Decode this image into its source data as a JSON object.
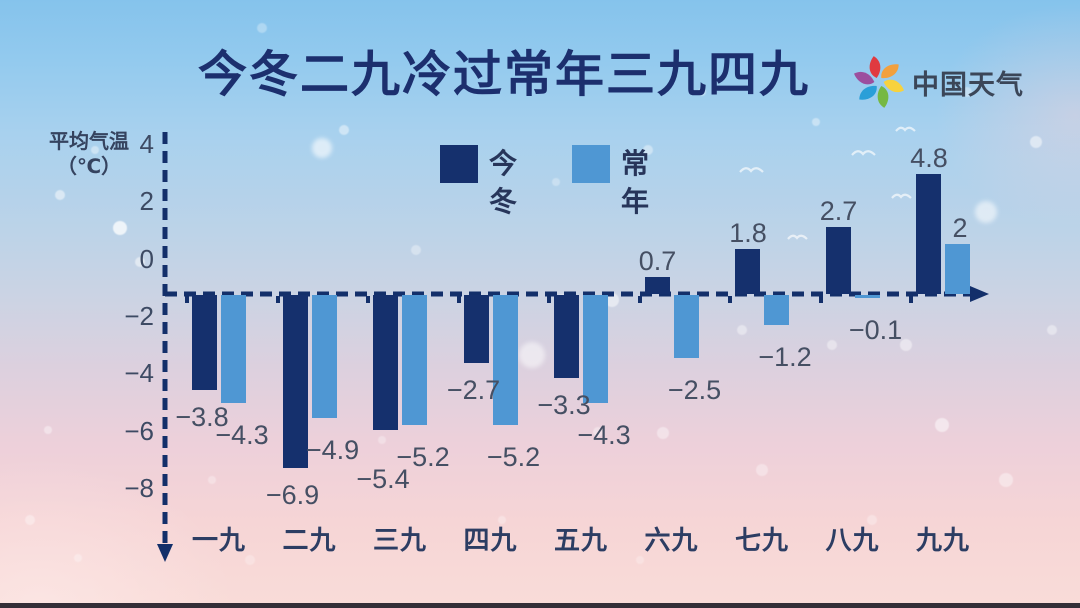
{
  "title": "今冬二九冷过常年三九四九",
  "logo": {
    "text": "中国天气",
    "icon": "pinwheel-swirl-icon",
    "petal_colors": [
      "#e03a40",
      "#f2a03d",
      "#f7d23e",
      "#76b843",
      "#2a9fd8",
      "#9c4f9e"
    ]
  },
  "axis": {
    "y_label_line1": "平均气温",
    "y_label_line2": "（℃）",
    "y_tick_labels": [
      "4",
      "2",
      "0",
      "−2",
      "−4",
      "−6",
      "−8"
    ]
  },
  "legend": [
    {
      "label": "今冬",
      "color": "#15306d"
    },
    {
      "label": "常年",
      "color": "#4f97d3"
    }
  ],
  "chart_data": {
    "type": "bar",
    "title": "今冬二九冷过常年三九四九",
    "ylabel": "平均气温（℃）",
    "categories": [
      "一九",
      "二九",
      "三九",
      "四九",
      "五九",
      "六九",
      "七九",
      "八九",
      "九九"
    ],
    "series": [
      {
        "name": "今冬",
        "color": "#15306d",
        "values": [
          -3.8,
          -6.9,
          -5.4,
          -2.7,
          -3.3,
          0.7,
          1.8,
          2.7,
          4.8
        ]
      },
      {
        "name": "常年",
        "color": "#4f97d3",
        "values": [
          -4.3,
          -4.9,
          -5.2,
          -5.2,
          -4.3,
          -2.5,
          -1.2,
          -0.1,
          2
        ]
      }
    ],
    "y_ticks": [
      4,
      2,
      0,
      -2,
      -4,
      -6,
      -8
    ],
    "ylim": [
      -8,
      4
    ],
    "baseline_value": 0,
    "grid": false,
    "legend_position": "top-center",
    "bar_value_labels": true
  }
}
